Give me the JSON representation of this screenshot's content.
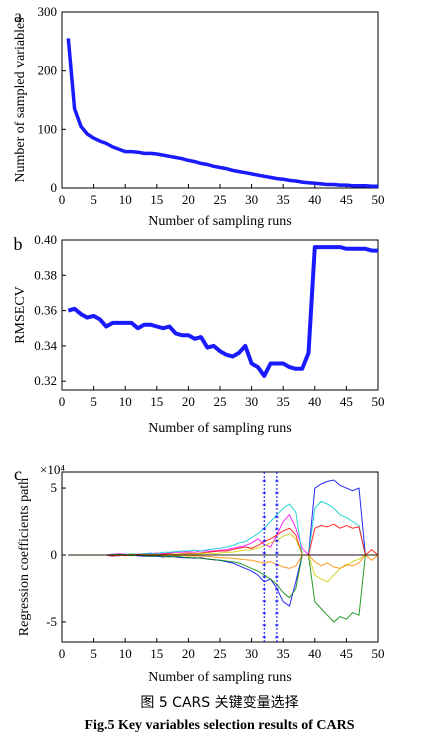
{
  "caption_cn": "图 5 CARS 关键变量选择",
  "caption_en": "Fig.5 Key variables selection results of CARS",
  "chart_data": [
    {
      "panel": "a",
      "type": "line",
      "xlabel": "Number of sampling runs",
      "ylabel": "Number of sampled variables",
      "xlim": [
        0,
        50
      ],
      "ylim": [
        0,
        300
      ],
      "xticks": [
        0,
        5,
        10,
        15,
        20,
        25,
        30,
        35,
        40,
        45,
        50
      ],
      "yticks": [
        0,
        100,
        200,
        300
      ],
      "color": "#1a1aff",
      "x": [
        1,
        2,
        3,
        4,
        5,
        6,
        7,
        8,
        9,
        10,
        11,
        12,
        13,
        14,
        15,
        16,
        17,
        18,
        19,
        20,
        21,
        22,
        23,
        24,
        25,
        26,
        27,
        28,
        29,
        30,
        31,
        32,
        33,
        34,
        35,
        36,
        37,
        38,
        39,
        40,
        41,
        42,
        43,
        44,
        45,
        46,
        47,
        48,
        49,
        50
      ],
      "y": [
        255,
        135,
        105,
        92,
        85,
        80,
        76,
        70,
        66,
        62,
        62,
        61,
        59,
        59,
        58,
        56,
        54,
        52,
        50,
        47,
        45,
        42,
        40,
        37,
        35,
        33,
        30,
        28,
        26,
        24,
        22,
        20,
        18,
        16,
        15,
        13,
        12,
        10,
        9,
        8,
        7,
        6,
        6,
        5,
        5,
        4,
        4,
        4,
        3,
        3
      ]
    },
    {
      "panel": "b",
      "type": "line",
      "xlabel": "Number of sampling runs",
      "ylabel": "RMSECV",
      "xlim": [
        0,
        50
      ],
      "ylim": [
        0.315,
        0.4
      ],
      "xticks": [
        0,
        5,
        10,
        15,
        20,
        25,
        30,
        35,
        40,
        45,
        50
      ],
      "yticks": [
        0.32,
        0.34,
        0.36,
        0.38,
        0.4
      ],
      "color": "#1a1aff",
      "x": [
        1,
        2,
        3,
        4,
        5,
        6,
        7,
        8,
        9,
        10,
        11,
        12,
        13,
        14,
        15,
        16,
        17,
        18,
        19,
        20,
        21,
        22,
        23,
        24,
        25,
        26,
        27,
        28,
        29,
        30,
        31,
        32,
        33,
        34,
        35,
        36,
        37,
        38,
        39,
        40,
        41,
        42,
        43,
        44,
        45,
        46,
        47,
        48,
        49,
        50
      ],
      "y": [
        0.36,
        0.361,
        0.358,
        0.356,
        0.357,
        0.355,
        0.351,
        0.353,
        0.353,
        0.353,
        0.353,
        0.35,
        0.352,
        0.352,
        0.351,
        0.35,
        0.351,
        0.347,
        0.346,
        0.346,
        0.344,
        0.345,
        0.339,
        0.34,
        0.337,
        0.335,
        0.334,
        0.336,
        0.34,
        0.33,
        0.328,
        0.323,
        0.33,
        0.33,
        0.33,
        0.328,
        0.327,
        0.327,
        0.336,
        0.396,
        0.396,
        0.396,
        0.396,
        0.396,
        0.395,
        0.395,
        0.395,
        0.395,
        0.394,
        0.394
      ]
    },
    {
      "panel": "c",
      "type": "line",
      "xlabel": "Number of sampling runs",
      "ylabel": "Regression coefficients path",
      "yscale_label": "×10⁴",
      "xlim": [
        0,
        50
      ],
      "ylim": [
        -6.5,
        6.2
      ],
      "xticks": [
        0,
        5,
        10,
        15,
        20,
        25,
        30,
        35,
        40,
        45,
        50
      ],
      "yticks": [
        -5,
        0,
        5
      ],
      "marker_runs": [
        32,
        34
      ],
      "x": [
        1,
        2,
        3,
        4,
        5,
        6,
        7,
        8,
        9,
        10,
        11,
        12,
        13,
        14,
        15,
        16,
        17,
        18,
        19,
        20,
        21,
        22,
        23,
        24,
        25,
        26,
        27,
        28,
        29,
        30,
        31,
        32,
        33,
        34,
        35,
        36,
        37,
        38,
        39,
        40,
        41,
        42,
        43,
        44,
        45,
        46,
        47,
        48,
        49,
        50
      ],
      "series": [
        {
          "color": "#ff00ff",
          "values": [
            0,
            0,
            0,
            0,
            0,
            0,
            0,
            0.05,
            0.1,
            0.05,
            0,
            0.05,
            0.1,
            0.1,
            0.15,
            0.1,
            0.15,
            0.2,
            0.2,
            0.25,
            0.2,
            0.3,
            0.3,
            0.3,
            0.35,
            0.4,
            0.5,
            0.6,
            0.7,
            0.9,
            1.2,
            0.8,
            0.6,
            1.5,
            2.5,
            3.0,
            2.0,
            0.5,
            0,
            0,
            0,
            0,
            0,
            0,
            0,
            0,
            0,
            0,
            0,
            0
          ]
        },
        {
          "color": "#0000ff",
          "values": [
            0,
            0,
            0,
            0,
            0,
            0,
            0,
            -0.05,
            -0.05,
            0,
            0,
            -0.05,
            -0.1,
            -0.1,
            -0.1,
            -0.15,
            -0.1,
            -0.15,
            -0.2,
            -0.2,
            -0.25,
            -0.2,
            -0.3,
            -0.35,
            -0.4,
            -0.5,
            -0.6,
            -0.8,
            -1.0,
            -1.2,
            -1.5,
            -2.0,
            -1.8,
            -2.5,
            -3.5,
            -3.8,
            -2.0,
            0,
            0,
            5.0,
            5.3,
            5.5,
            5.6,
            5.2,
            5.0,
            4.8,
            5.0,
            0,
            0,
            0
          ]
        },
        {
          "color": "#00cccc",
          "values": [
            0,
            0,
            0,
            0,
            0,
            0,
            0,
            0.05,
            0,
            0.05,
            0.1,
            0.05,
            0.1,
            0.15,
            0.1,
            0.2,
            0.2,
            0.25,
            0.3,
            0.3,
            0.35,
            0.3,
            0.4,
            0.45,
            0.5,
            0.6,
            0.7,
            0.9,
            1.0,
            1.3,
            1.6,
            2.0,
            2.5,
            3.0,
            3.5,
            3.8,
            3.2,
            0,
            0,
            3.5,
            4.0,
            3.8,
            3.5,
            3.0,
            2.8,
            2.5,
            2.2,
            0,
            0,
            0
          ]
        },
        {
          "color": "#ff0000",
          "values": [
            0,
            0,
            0,
            0,
            0,
            0,
            0,
            -0.1,
            0,
            -0.05,
            0,
            0.05,
            0,
            -0.05,
            0,
            0.05,
            0.1,
            0.05,
            0.1,
            0.15,
            0.1,
            0.15,
            0.2,
            0.25,
            0.3,
            0.3,
            0.4,
            0.5,
            0.6,
            0.5,
            0.7,
            1.0,
            1.2,
            1.5,
            1.8,
            2.0,
            1.5,
            0,
            0,
            2.0,
            2.2,
            2.1,
            2.3,
            2.0,
            2.2,
            2.0,
            2.1,
            0,
            0.4,
            0
          ]
        },
        {
          "color": "#008800",
          "values": [
            0,
            0,
            0,
            0,
            0,
            0,
            0,
            0,
            0.05,
            0,
            -0.05,
            0,
            -0.05,
            -0.1,
            -0.05,
            -0.1,
            -0.15,
            -0.1,
            -0.15,
            -0.2,
            -0.2,
            -0.25,
            -0.3,
            -0.35,
            -0.4,
            -0.45,
            -0.5,
            -0.6,
            -0.8,
            -1.0,
            -1.2,
            -1.5,
            -1.8,
            -2.2,
            -2.8,
            -3.2,
            -2.5,
            0,
            0,
            -3.5,
            -4.0,
            -4.5,
            -5.0,
            -4.6,
            -4.8,
            -4.3,
            -4.5,
            0,
            0,
            0
          ]
        },
        {
          "color": "#cccc00",
          "values": [
            0,
            0,
            0,
            0,
            0,
            0,
            0,
            0,
            0,
            0,
            0,
            0,
            0,
            0,
            0.05,
            0,
            0.05,
            0.05,
            0.1,
            0.05,
            0.1,
            0.1,
            0.15,
            0.1,
            0.15,
            0.2,
            0.2,
            0.3,
            0.35,
            0.4,
            0.5,
            0.7,
            0.9,
            1.1,
            1.4,
            1.6,
            1.2,
            0,
            0,
            -1.5,
            -1.8,
            -2.0,
            -1.5,
            -1.0,
            -0.8,
            -0.5,
            -0.3,
            0,
            0,
            0
          ]
        },
        {
          "color": "#ff8800",
          "values": [
            0,
            0,
            0,
            0,
            0,
            0,
            0,
            0,
            -0.05,
            0,
            0.05,
            0,
            0.05,
            0,
            0.05,
            -0.05,
            0,
            -0.05,
            0,
            -0.1,
            -0.05,
            -0.1,
            -0.1,
            -0.15,
            -0.2,
            -0.2,
            -0.25,
            -0.3,
            -0.35,
            -0.4,
            -0.5,
            -0.6,
            -0.5,
            -0.7,
            -0.9,
            -1.0,
            -0.8,
            0,
            0,
            -0.5,
            -0.8,
            -0.6,
            -0.9,
            -1.0,
            -0.7,
            -0.8,
            -0.6,
            0,
            -0.4,
            0
          ]
        },
        {
          "color": "#000000",
          "values": [
            0,
            0,
            0,
            0,
            0,
            0,
            0,
            0,
            0,
            0,
            0,
            0,
            0,
            0,
            0,
            0,
            0,
            0,
            0,
            0,
            0,
            0,
            0,
            0,
            0,
            0,
            0,
            0,
            0,
            0,
            0,
            0,
            0,
            0,
            0,
            0,
            0,
            0,
            0,
            0,
            0,
            0,
            0,
            0,
            0,
            0,
            0,
            0,
            0,
            0
          ]
        }
      ]
    }
  ]
}
